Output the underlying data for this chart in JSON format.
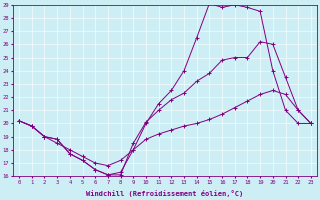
{
  "xlabel": "Windchill (Refroidissement éolien,°C)",
  "bg_color": "#cdeef5",
  "line_color": "#800080",
  "xlim": [
    -0.5,
    23.5
  ],
  "ylim": [
    16,
    29
  ],
  "yticks": [
    16,
    17,
    18,
    19,
    20,
    21,
    22,
    23,
    24,
    25,
    26,
    27,
    28,
    29
  ],
  "xticks": [
    0,
    1,
    2,
    3,
    4,
    5,
    6,
    7,
    8,
    9,
    10,
    11,
    12,
    13,
    14,
    15,
    16,
    17,
    18,
    19,
    20,
    21,
    22,
    23
  ],
  "line1_x": [
    0,
    1,
    2,
    3,
    4,
    5,
    6,
    7,
    8,
    9,
    10,
    11,
    12,
    13,
    14,
    15,
    16,
    17,
    18,
    19,
    20,
    21,
    22,
    23
  ],
  "line1_y": [
    20.2,
    19.8,
    19.0,
    18.8,
    17.7,
    17.2,
    16.5,
    16.1,
    16.1,
    18.5,
    20.1,
    21.0,
    21.8,
    22.3,
    23.2,
    23.8,
    24.8,
    25.0,
    25.0,
    26.2,
    26.0,
    23.5,
    21.0,
    20.0
  ],
  "line2_x": [
    0,
    1,
    2,
    3,
    4,
    5,
    6,
    7,
    8,
    9,
    10,
    11,
    12,
    13,
    14,
    15,
    16,
    17,
    18,
    19,
    20,
    21,
    22,
    23
  ],
  "line2_y": [
    20.2,
    19.8,
    19.0,
    18.8,
    17.7,
    17.2,
    16.5,
    16.1,
    16.3,
    18.0,
    20.0,
    21.5,
    22.5,
    24.0,
    26.5,
    29.1,
    28.8,
    29.0,
    28.8,
    28.5,
    24.0,
    21.0,
    20.0,
    20.0
  ],
  "line3_x": [
    0,
    1,
    2,
    3,
    4,
    5,
    6,
    7,
    8,
    9,
    10,
    11,
    12,
    13,
    14,
    15,
    16,
    17,
    18,
    19,
    20,
    21,
    22,
    23
  ],
  "line3_y": [
    20.2,
    19.8,
    19.0,
    18.5,
    18.0,
    17.5,
    17.0,
    16.8,
    17.2,
    18.0,
    18.8,
    19.2,
    19.5,
    19.8,
    20.0,
    20.3,
    20.7,
    21.2,
    21.7,
    22.2,
    22.5,
    22.2,
    21.0,
    20.0
  ]
}
